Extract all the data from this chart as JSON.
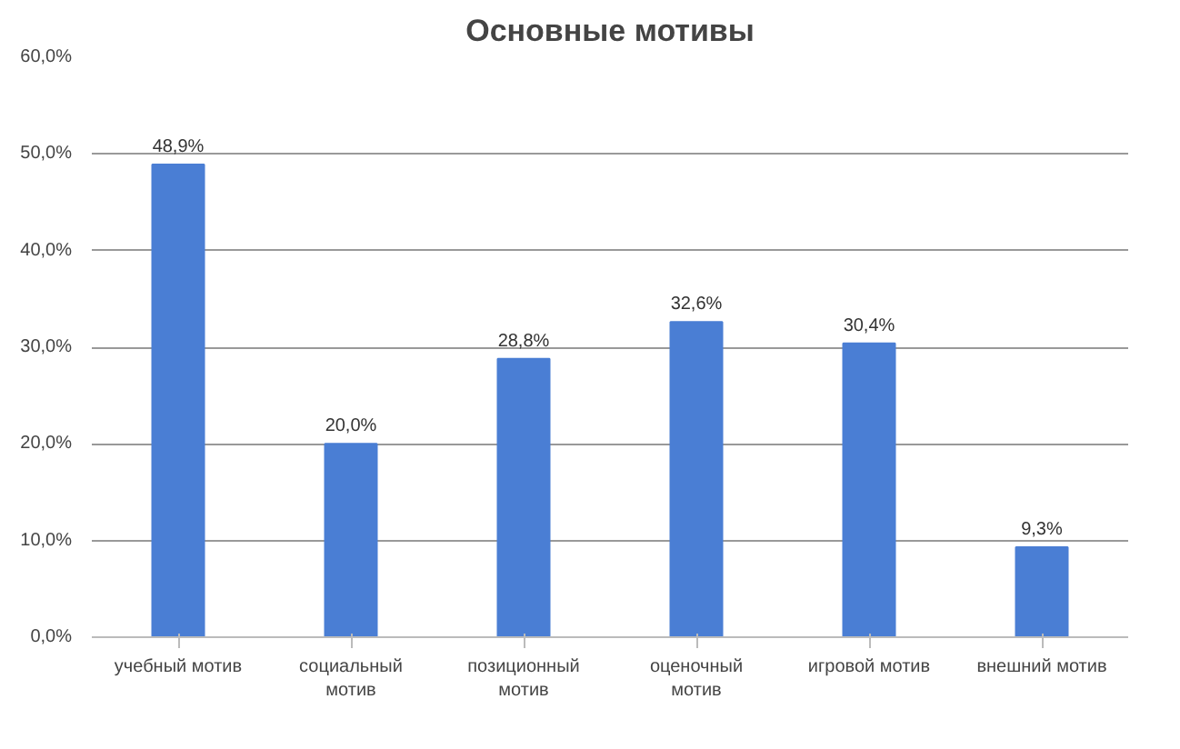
{
  "chart_data": {
    "type": "bar",
    "title": "Основные мотивы",
    "categories": [
      "учебный мотив",
      "социальный мотив",
      "позиционный мотив",
      "оценочный мотив",
      "игровой мотив",
      "внешний мотив"
    ],
    "values": [
      48.9,
      20.0,
      28.8,
      32.6,
      30.4,
      9.3
    ],
    "value_labels": [
      "48,9%",
      "20,0%",
      "28,8%",
      "32,6%",
      "30,4%",
      "9,3%"
    ],
    "color": "#4a7ed4",
    "ylim": [
      0,
      60
    ],
    "yticks": [
      {
        "value": 0,
        "label": "0,0%"
      },
      {
        "value": 10,
        "label": "10,0%"
      },
      {
        "value": 20,
        "label": "20,0%"
      },
      {
        "value": 30,
        "label": "30,0%"
      },
      {
        "value": 40,
        "label": "40,0%"
      },
      {
        "value": 50,
        "label": "50,0%"
      },
      {
        "value": 60,
        "label": "60,0%"
      }
    ],
    "grid": "y"
  }
}
